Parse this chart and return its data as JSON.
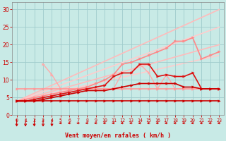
{
  "bg_color": "#c8eae6",
  "grid_color": "#a0cccc",
  "xlabel": "Vent moyen/en rafales ( km/h )",
  "xlabel_color": "#cc0000",
  "tick_color": "#cc0000",
  "xlim": [
    -0.5,
    23.5
  ],
  "ylim": [
    0,
    32
  ],
  "yticks": [
    0,
    5,
    10,
    15,
    20,
    25,
    30
  ],
  "xticks": [
    0,
    1,
    2,
    3,
    4,
    5,
    6,
    7,
    8,
    9,
    10,
    11,
    12,
    13,
    14,
    15,
    16,
    17,
    18,
    19,
    20,
    21,
    22,
    23
  ],
  "lines": [
    {
      "x": [
        0,
        1,
        2,
        3,
        4,
        5,
        6,
        7,
        8,
        9,
        10,
        11,
        12,
        13,
        14,
        15,
        16,
        17,
        18,
        19,
        20,
        21,
        22,
        23
      ],
      "y": [
        4,
        4,
        4,
        4,
        4,
        4,
        4,
        4,
        4,
        4,
        4,
        4,
        4,
        4,
        4,
        4,
        4,
        4,
        4,
        4,
        4,
        4,
        4,
        4
      ],
      "color": "#cc0000",
      "lw": 1.2,
      "marker": true,
      "ms": 2.5,
      "zorder": 7
    },
    {
      "x": [
        0,
        1,
        2,
        3,
        4,
        5,
        6,
        7,
        8,
        9,
        10,
        11,
        12,
        13,
        14,
        15,
        16,
        17,
        18,
        19,
        20,
        21,
        22,
        23
      ],
      "y": [
        4,
        4,
        4,
        4.5,
        5,
        5.5,
        6,
        6.5,
        7,
        7,
        7,
        7.5,
        8,
        8.5,
        9,
        9,
        9,
        9,
        9,
        8,
        8,
        7.5,
        7.5,
        7.5
      ],
      "color": "#cc0000",
      "lw": 1.2,
      "marker": true,
      "ms": 2.5,
      "zorder": 6
    },
    {
      "x": [
        0,
        1,
        2,
        3,
        4,
        5,
        6,
        7,
        8,
        9,
        10,
        11,
        12,
        13,
        14,
        15,
        16,
        17,
        18,
        19,
        20,
        21,
        22,
        23
      ],
      "y": [
        4,
        4,
        4.5,
        5,
        5.5,
        6,
        6.5,
        7,
        7.5,
        8,
        8.5,
        11,
        12,
        12,
        14.5,
        14.5,
        11,
        11.5,
        11,
        11,
        12,
        7.5,
        7.5,
        7.5
      ],
      "color": "#dd1111",
      "lw": 1.2,
      "marker": true,
      "ms": 2.5,
      "zorder": 5
    },
    {
      "x": [
        0,
        1,
        2,
        3,
        4,
        5,
        6,
        7,
        8,
        9,
        10,
        11,
        12,
        13,
        14,
        15,
        16,
        17,
        18,
        19,
        20,
        21,
        22,
        23
      ],
      "y": [
        7.5,
        7.5,
        7.5,
        7.5,
        7.5,
        7.5,
        7.5,
        7.5,
        7.5,
        7.5,
        7.5,
        7.5,
        7.5,
        7.5,
        7.5,
        7.5,
        7.5,
        7.5,
        7.5,
        7.5,
        7.5,
        7.5,
        7.5,
        7.5
      ],
      "color": "#ff9999",
      "lw": 1.2,
      "marker": true,
      "ms": 2.5,
      "zorder": 4
    },
    {
      "x": [
        0,
        1,
        2,
        3,
        4,
        5,
        6,
        7,
        8,
        9,
        10,
        11,
        12,
        13,
        14,
        15,
        16,
        17,
        18,
        19,
        20,
        21,
        22,
        23
      ],
      "y": [
        4,
        4.5,
        5,
        5.5,
        6,
        6.5,
        7,
        7.5,
        8,
        9,
        10,
        11.5,
        14.5,
        15,
        16,
        17,
        18,
        19,
        21,
        21,
        22,
        16,
        17,
        18
      ],
      "color": "#ff8888",
      "lw": 1.2,
      "marker": true,
      "ms": 2.5,
      "zorder": 4
    },
    {
      "x": [
        3,
        4,
        5,
        6,
        7,
        8,
        9,
        10,
        11,
        12,
        13,
        14,
        15,
        16,
        17,
        18,
        19,
        20,
        21,
        22,
        23
      ],
      "y": [
        14.5,
        11.5,
        7.5,
        7.5,
        7.5,
        7.5,
        7.5,
        7.5,
        7.5,
        12,
        12,
        14.5,
        12,
        7.5,
        11.5,
        7.5,
        7.5,
        7.5,
        7.5,
        7.5,
        7.5
      ],
      "color": "#ffaaaa",
      "lw": 1.0,
      "marker": true,
      "ms": 2.5,
      "zorder": 3
    },
    {
      "x": [
        0,
        23
      ],
      "y": [
        4,
        30
      ],
      "color": "#ffbbbb",
      "lw": 1.2,
      "marker": false,
      "ms": 0,
      "zorder": 2
    },
    {
      "x": [
        0,
        23
      ],
      "y": [
        4,
        25
      ],
      "color": "#ffcccc",
      "lw": 1.2,
      "marker": false,
      "ms": 0,
      "zorder": 2
    },
    {
      "x": [
        0,
        23
      ],
      "y": [
        4,
        20
      ],
      "color": "#ffbbbb",
      "lw": 1.2,
      "marker": false,
      "ms": 0,
      "zorder": 2
    },
    {
      "x": [
        0,
        23
      ],
      "y": [
        4,
        17
      ],
      "color": "#ffcccc",
      "lw": 1.2,
      "marker": false,
      "ms": 0,
      "zorder": 1
    }
  ],
  "arrows_down_x": [
    0,
    1,
    2,
    3,
    4
  ],
  "arrows_left_x": [
    5,
    6,
    7,
    8,
    9,
    10,
    11,
    12,
    13,
    14,
    15,
    16,
    17,
    18,
    19,
    20,
    21,
    22,
    23
  ],
  "arrow_color": "#cc0000"
}
